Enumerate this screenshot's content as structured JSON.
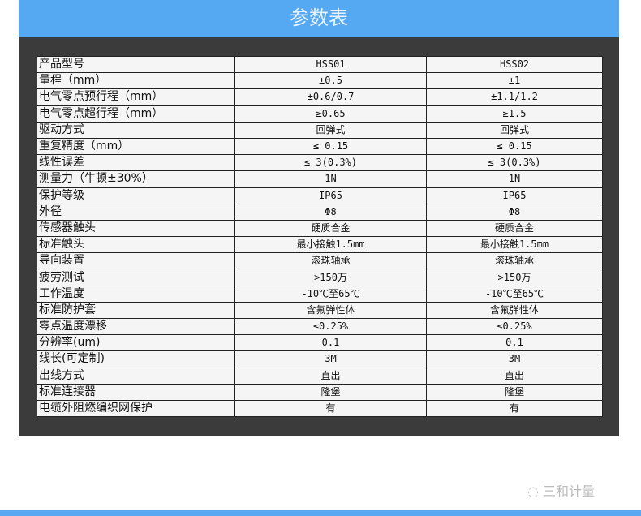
{
  "title": "参数表",
  "rows": [
    [
      "产品型号",
      "HSS01",
      "HSS02"
    ],
    [
      "量程（mm）",
      "±0.5",
      "±1"
    ],
    [
      "电气零点预行程（mm）",
      "±0.6/0.7",
      "±1.1/1.2"
    ],
    [
      "电气零点超行程（mm）",
      "≥0.65",
      "≥1.5"
    ],
    [
      "驱动方式",
      "回弹式",
      "回弹式"
    ],
    [
      "重复精度（mm）",
      "≤ 0.15",
      "≤ 0.15"
    ],
    [
      "线性误差",
      "≤ 3(0.3%)",
      "≤ 3(0.3%)"
    ],
    [
      "测量力（牛顿±30%）",
      "1N",
      "1N"
    ],
    [
      "保护等级",
      "IP65",
      "IP65"
    ],
    [
      "外径",
      "Φ8",
      "Φ8"
    ],
    [
      "传感器触头",
      "硬质合金",
      "硬质合金"
    ],
    [
      "标准触头",
      "最小接触1.5mm",
      "最小接触1.5mm"
    ],
    [
      "导向装置",
      "滚珠轴承",
      "滚珠轴承"
    ],
    [
      "疲劳测试",
      ">150万",
      ">150万"
    ],
    [
      "工作温度",
      "-10℃至65℃",
      "-10℃至65℃"
    ],
    [
      "标准防护套",
      "含氟弹性体",
      "含氟弹性体"
    ],
    [
      "零点温度漂移",
      "≤0.25%",
      "≤0.25%"
    ],
    [
      "分辨率(um)",
      "0.1",
      "0.1"
    ],
    [
      "线长(可定制)",
      "3M",
      "3M"
    ],
    [
      "出线方式",
      "直出",
      "直出"
    ],
    [
      "标准连接器",
      "隆堡",
      "隆堡"
    ],
    [
      "电缆外阻燃编织网保护",
      "有",
      "有"
    ]
  ],
  "watermark": "三和计量"
}
